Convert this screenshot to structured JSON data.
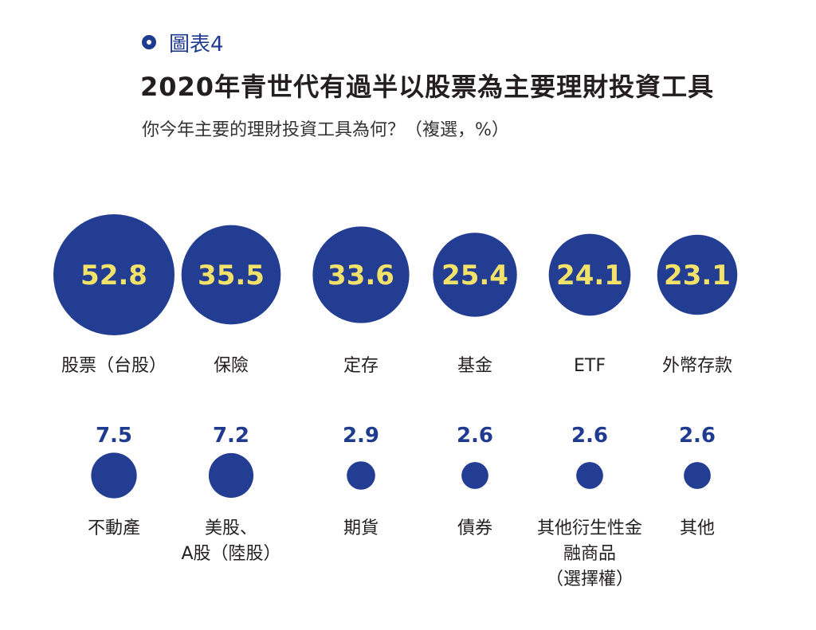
{
  "header": {
    "figure_label": "圖表4",
    "title": "2020年青世代有過半以股票為主要理財投資工具",
    "subtitle": "你今年主要的理財投資工具為何？（複選，%）"
  },
  "colors": {
    "bubble": "#223d91",
    "value_inside": "#f2e26a",
    "value_outside": "#1f3b8f"
  },
  "chart_data": {
    "type": "bubble",
    "unit": "%",
    "items": [
      {
        "label": "股票（台股）",
        "value": 52.8
      },
      {
        "label": "保險",
        "value": 35.5
      },
      {
        "label": "定存",
        "value": 33.6
      },
      {
        "label": "基金",
        "value": 25.4
      },
      {
        "label": "ETF",
        "value": 24.1
      },
      {
        "label": "外幣存款",
        "value": 23.1
      },
      {
        "label": "不動產",
        "value": 7.5
      },
      {
        "label": "美股、\nA股（陸股）",
        "value": 7.2
      },
      {
        "label": "期貨",
        "value": 2.9
      },
      {
        "label": "債券",
        "value": 2.6
      },
      {
        "label": "其他衍生性金\n融商品\n（選擇權）",
        "value": 2.6
      },
      {
        "label": "其他",
        "value": 2.6
      }
    ]
  }
}
